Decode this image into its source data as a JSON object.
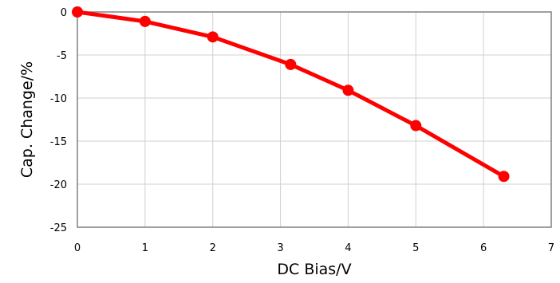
{
  "chart_data": {
    "type": "line",
    "title": "",
    "xlabel": "DC Bias/V",
    "ylabel": "Cap. Change/%",
    "xlim": [
      0,
      7
    ],
    "ylim": [
      -25,
      0
    ],
    "xticks": [
      0,
      1,
      2,
      3,
      4,
      5,
      6,
      7
    ],
    "yticks": [
      0,
      -5,
      -10,
      -15,
      -20,
      -25
    ],
    "grid": true,
    "legend": "none",
    "series": [
      {
        "color": "#ff0000",
        "marker": "circle",
        "x": [
          0,
          1,
          2,
          3.15,
          4,
          5,
          6.3
        ],
        "y": [
          0,
          -1.1,
          -2.9,
          -6.1,
          -9.1,
          -13.2,
          -19.1
        ]
      }
    ]
  }
}
